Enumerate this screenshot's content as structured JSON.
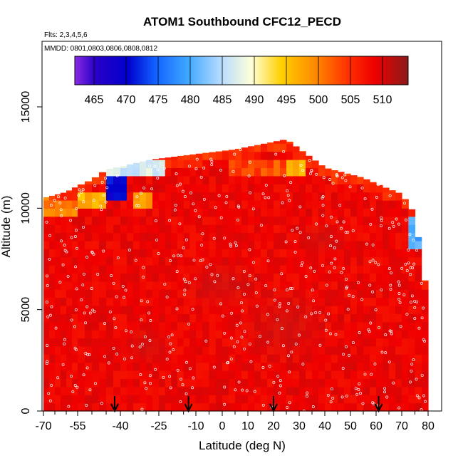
{
  "chart_data": {
    "type": "heatmap",
    "title": "ATOM1 Southbound CFC12_PECD",
    "subtitle_flights": "Flts: 2,3,4,5,6",
    "subtitle_dates": "MMDD: 0801,0803,0806,0808,0812",
    "xlabel": "Latitude (deg N)",
    "ylabel": "Altitude (m)",
    "xlim": [
      -70,
      85
    ],
    "ylim": [
      0,
      17500
    ],
    "x_ticks": [
      "-70",
      "-55",
      "-40",
      "-25",
      "-10",
      "0",
      "10",
      "20",
      "30",
      "40",
      "50",
      "60",
      "70",
      "80"
    ],
    "x_tick_values": [
      -70,
      -55,
      -40,
      -25,
      -10,
      0,
      10,
      20,
      30,
      40,
      50,
      60,
      70,
      80
    ],
    "y_ticks": [
      "0",
      "5000",
      "10000",
      "15000"
    ],
    "y_tick_values": [
      0,
      5000,
      10000,
      15000
    ],
    "colorbar": {
      "range": [
        462,
        514
      ],
      "ticks": [
        "465",
        "470",
        "475",
        "480",
        "485",
        "490",
        "495",
        "500",
        "505",
        "510"
      ],
      "tick_values": [
        465,
        470,
        475,
        480,
        485,
        490,
        495,
        500,
        505,
        510
      ]
    },
    "background_value": 508,
    "ceiling_profile": [
      {
        "lat": -70,
        "alt": 10500
      },
      {
        "lat": -60,
        "alt": 10800
      },
      {
        "lat": -50,
        "alt": 11400
      },
      {
        "lat": -45,
        "alt": 11900
      },
      {
        "lat": -28,
        "alt": 12400
      },
      {
        "lat": 5,
        "alt": 12900
      },
      {
        "lat": 25,
        "alt": 13400
      },
      {
        "lat": 40,
        "alt": 12000
      },
      {
        "lat": 55,
        "alt": 11500
      },
      {
        "lat": 62,
        "alt": 11100
      },
      {
        "lat": 70,
        "alt": 10700
      },
      {
        "lat": 75,
        "alt": 9700
      },
      {
        "lat": 78,
        "alt": 7000
      },
      {
        "lat": 80,
        "alt": 5500
      }
    ],
    "low_value_regions": [
      {
        "lat_range": [
          -45,
          -22
        ],
        "alt_range": [
          11500,
          12400
        ],
        "value": 487
      },
      {
        "lat_range": [
          -44,
          -37
        ],
        "alt_range": [
          10500,
          11500
        ],
        "value": 470
      },
      {
        "lat_range": [
          -55,
          -45
        ],
        "alt_range": [
          10200,
          10800
        ],
        "value": 497
      },
      {
        "lat_range": [
          -36,
          -28
        ],
        "alt_range": [
          10000,
          10800
        ],
        "value": 498
      },
      {
        "lat_range": [
          -70,
          -55
        ],
        "alt_range": [
          9800,
          10500
        ],
        "value": 500
      },
      {
        "lat_range": [
          73,
          78
        ],
        "alt_range": [
          8200,
          9600
        ],
        "value": 480
      },
      {
        "lat_range": [
          25,
          32
        ],
        "alt_range": [
          11800,
          12500
        ],
        "value": 497
      },
      {
        "lat_range": [
          2,
          25
        ],
        "alt_range": [
          11600,
          12400
        ],
        "value": 503
      }
    ],
    "arrows_lat": [
      -42,
      -13,
      20,
      61
    ]
  }
}
